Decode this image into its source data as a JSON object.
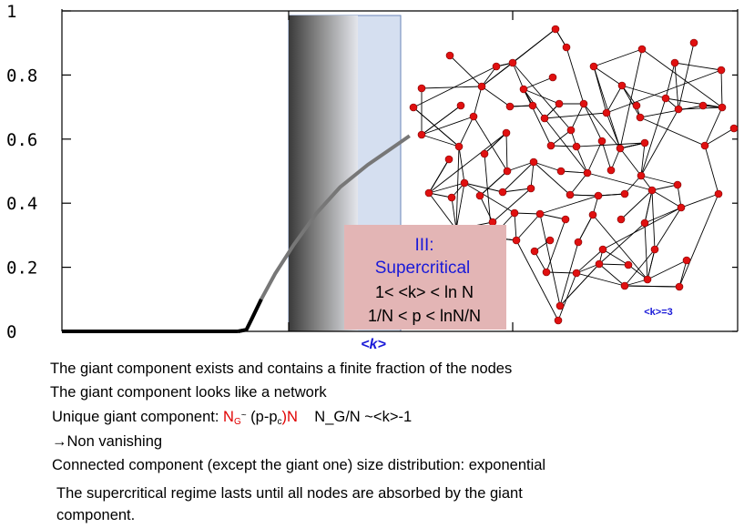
{
  "chart_data": {
    "type": "line",
    "yticks": [
      "0",
      "0.2",
      "0.4",
      "0.6",
      "0.8",
      "1"
    ],
    "ylim": [
      0,
      1
    ],
    "xlabel": "<k>",
    "curve": [
      [
        0,
        0
      ],
      [
        0.1,
        0
      ],
      [
        0.2,
        0
      ],
      [
        0.3,
        0
      ],
      [
        0.38,
        0
      ],
      [
        0.398,
        0.005
      ],
      [
        0.41,
        0.04
      ],
      [
        0.43,
        0.1
      ],
      [
        0.46,
        0.18
      ],
      [
        0.5,
        0.27
      ],
      [
        0.55,
        0.37
      ],
      [
        0.6,
        0.45
      ],
      [
        0.66,
        0.52
      ],
      [
        0.72,
        0.58
      ],
      [
        0.75,
        0.61
      ]
    ]
  },
  "regime": {
    "title_line1": "III:",
    "title_line2": "Supercritical",
    "condition_k": "1< <k> < ln N",
    "condition_p": "1/N < p < lnN/N"
  },
  "network": {
    "label": "<k>=3"
  },
  "bullets": {
    "line1": "The giant component exists and contains a finite fraction of the nodes",
    "line2": "The giant component looks like a network",
    "line3_prefix": "Unique giant component: ",
    "line3_ng": "N",
    "line3_ng_sub": "G",
    "line3_tilde": "~",
    "line3_formula_a": " (p-p",
    "line3_formula_sub": "c",
    "line3_formula_b": ")N",
    "line3_suffix": "    N_G/N ~<k>-1",
    "line4": "→Non vanishing",
    "line5": "Connected component (except the giant one) size distribution: exponential",
    "line6a": "The supercritical regime lasts until all nodes are absorbed by the giant",
    "line6b": "component."
  },
  "colors": {
    "accent_blue": "#1a1ad8",
    "node_red": "#e01010",
    "box_pink": "#e3b5b5",
    "region_blue": "#d5dff0",
    "text_red": "#e00000"
  }
}
